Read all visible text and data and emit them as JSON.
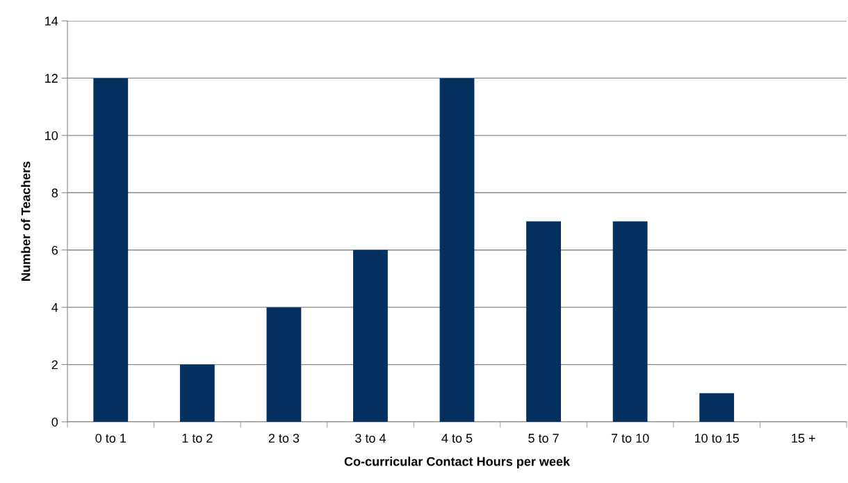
{
  "chart_data": {
    "type": "bar",
    "xlabel": "Co-curricular Contact Hours per week",
    "ylabel": "Number of Teachers",
    "categories": [
      "0 to 1",
      "1 to 2",
      "2 to 3",
      "3 to 4",
      "4 to 5",
      "5 to 7",
      "7 to 10",
      "10 to 15",
      "15 +"
    ],
    "values": [
      12,
      2,
      4,
      6,
      12,
      7,
      7,
      1,
      0
    ],
    "color": "#03305f",
    "ylim": [
      0,
      14
    ],
    "yticks": [
      0,
      2,
      4,
      6,
      8,
      10,
      12,
      14
    ],
    "grid": "y",
    "legend": false
  }
}
